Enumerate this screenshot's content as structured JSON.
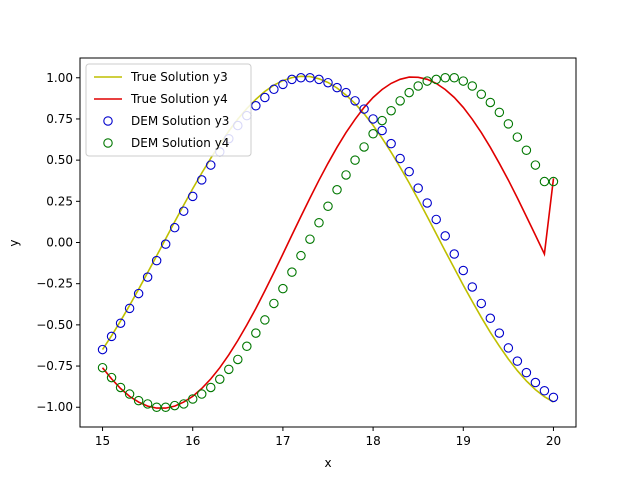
{
  "chart_data": {
    "type": "line",
    "title": "",
    "xlabel": "x",
    "ylabel": "y",
    "xlim": [
      14.75,
      20.25
    ],
    "ylim": [
      -1.12,
      1.12
    ],
    "xticks": [
      15,
      16,
      17,
      18,
      19,
      20
    ],
    "yticks": [
      -1.0,
      -0.75,
      -0.5,
      -0.25,
      0.0,
      0.25,
      0.5,
      0.75,
      1.0
    ],
    "x_tick_labels": [
      "15",
      "16",
      "17",
      "18",
      "19",
      "20"
    ],
    "y_tick_labels": [
      "−1.00",
      "−0.75",
      "−0.50",
      "−0.25",
      "0.00",
      "0.25",
      "0.50",
      "0.75",
      "1.00"
    ],
    "grid": false,
    "legend_position": "upper-left",
    "colors": {
      "true_y3": "#bfbf00",
      "true_y4": "#e00000",
      "dem_y3": "#0000cc",
      "dem_y4": "#007700"
    },
    "series": [
      {
        "name": "True Solution y3",
        "kind": "line",
        "color": "#bfbf00",
        "x": [
          15.0,
          15.1,
          15.2,
          15.3,
          15.4,
          15.5,
          15.6,
          15.7,
          15.8,
          15.9,
          16.0,
          16.1,
          16.2,
          16.3,
          16.4,
          16.5,
          16.6,
          16.7,
          16.8,
          16.9,
          17.0,
          17.1,
          17.2,
          17.3,
          17.4,
          17.5,
          17.6,
          17.7,
          17.8,
          17.9,
          18.0,
          18.1,
          18.2,
          18.3,
          18.4,
          18.5,
          18.6,
          18.7,
          18.8,
          18.9,
          19.0,
          19.1,
          19.2,
          19.3,
          19.4,
          19.5,
          19.6,
          19.7,
          19.8,
          19.9,
          20.0
        ],
        "y": [
          -0.65,
          -0.566,
          -0.476,
          -0.382,
          -0.284,
          -0.183,
          -0.08,
          0.023,
          0.126,
          0.227,
          0.326,
          0.421,
          0.512,
          0.597,
          0.676,
          0.749,
          0.813,
          0.869,
          0.917,
          0.955,
          0.983,
          1.001,
          1.009,
          1.007,
          0.994,
          0.971,
          0.938,
          0.895,
          0.843,
          0.781,
          0.711,
          0.633,
          0.548,
          0.457,
          0.361,
          0.261,
          0.158,
          0.053,
          -0.052,
          -0.156,
          -0.259,
          -0.358,
          -0.454,
          -0.545,
          -0.629,
          -0.708,
          -0.778,
          -0.84,
          -0.893,
          -0.936,
          -0.968
        ]
      },
      {
        "name": "True Solution y4",
        "kind": "line",
        "color": "#e00000",
        "x": [
          15.0,
          15.1,
          15.2,
          15.3,
          15.4,
          15.5,
          15.6,
          15.7,
          15.8,
          15.9,
          16.0,
          16.1,
          16.2,
          16.3,
          16.4,
          16.5,
          16.6,
          16.7,
          16.8,
          16.9,
          17.0,
          17.1,
          17.2,
          17.3,
          17.4,
          17.5,
          17.6,
          17.7,
          17.8,
          17.9,
          18.0,
          18.1,
          18.2,
          18.3,
          18.4,
          18.5,
          18.6,
          18.7,
          18.8,
          18.9,
          19.0,
          19.1,
          19.2,
          19.3,
          19.4,
          19.5,
          19.6,
          19.7,
          19.8,
          19.9,
          20.0
        ],
        "y": [
          -0.76,
          -0.828,
          -0.886,
          -0.934,
          -0.969,
          -0.993,
          -1.005,
          -1.005,
          -0.993,
          -0.969,
          -0.934,
          -0.886,
          -0.828,
          -0.76,
          -0.682,
          -0.595,
          -0.501,
          -0.4,
          -0.293,
          -0.183,
          -0.07,
          0.045,
          0.158,
          0.27,
          0.378,
          0.481,
          0.578,
          0.667,
          0.748,
          0.82,
          0.88,
          0.929,
          0.966,
          0.991,
          1.004,
          1.003,
          0.991,
          0.966,
          0.929,
          0.88,
          0.82,
          0.748,
          0.667,
          0.578,
          0.481,
          0.378,
          0.27,
          0.158,
          0.045,
          -0.07,
          0.39
        ]
      },
      {
        "name": "DEM Solution y3",
        "kind": "scatter",
        "color": "#0000cc",
        "x": [
          15.0,
          15.1,
          15.2,
          15.3,
          15.4,
          15.5,
          15.6,
          15.7,
          15.8,
          15.9,
          16.0,
          16.1,
          16.2,
          16.3,
          16.4,
          16.5,
          16.6,
          16.7,
          16.8,
          16.9,
          17.0,
          17.1,
          17.2,
          17.3,
          17.4,
          17.5,
          17.6,
          17.7,
          17.8,
          17.9,
          18.0,
          18.1,
          18.2,
          18.3,
          18.4,
          18.5,
          18.6,
          18.7,
          18.8,
          18.9,
          19.0,
          19.1,
          19.2,
          19.3,
          19.4,
          19.5,
          19.6,
          19.7,
          19.8,
          19.9,
          20.0
        ],
        "y": [
          -0.65,
          -0.57,
          -0.49,
          -0.4,
          -0.31,
          -0.21,
          -0.11,
          -0.01,
          0.09,
          0.19,
          0.28,
          0.38,
          0.47,
          0.55,
          0.63,
          0.71,
          0.77,
          0.83,
          0.88,
          0.93,
          0.96,
          0.99,
          1.0,
          1.0,
          0.99,
          0.97,
          0.94,
          0.91,
          0.86,
          0.81,
          0.75,
          0.68,
          0.6,
          0.51,
          0.43,
          0.33,
          0.24,
          0.14,
          0.04,
          -0.07,
          -0.17,
          -0.27,
          -0.37,
          -0.46,
          -0.55,
          -0.64,
          -0.72,
          -0.79,
          -0.85,
          -0.9,
          -0.94
        ]
      },
      {
        "name": "DEM Solution y4",
        "kind": "scatter",
        "color": "#007700",
        "x": [
          15.0,
          15.1,
          15.2,
          15.3,
          15.4,
          15.5,
          15.6,
          15.7,
          15.8,
          15.9,
          16.0,
          16.1,
          16.2,
          16.3,
          16.4,
          16.5,
          16.6,
          16.7,
          16.8,
          16.9,
          17.0,
          17.1,
          17.2,
          17.3,
          17.4,
          17.5,
          17.6,
          17.7,
          17.8,
          17.9,
          18.0,
          18.1,
          18.2,
          18.3,
          18.4,
          18.5,
          18.6,
          18.7,
          18.8,
          18.9,
          19.0,
          19.1,
          19.2,
          19.3,
          19.4,
          19.5,
          19.6,
          19.7,
          19.8,
          19.9,
          20.0
        ],
        "y": [
          -0.76,
          -0.82,
          -0.88,
          -0.92,
          -0.96,
          -0.98,
          -1.0,
          -1.0,
          -0.99,
          -0.98,
          -0.95,
          -0.92,
          -0.88,
          -0.83,
          -0.77,
          -0.71,
          -0.63,
          -0.55,
          -0.47,
          -0.37,
          -0.28,
          -0.18,
          -0.08,
          0.02,
          0.12,
          0.22,
          0.32,
          0.41,
          0.5,
          0.58,
          0.66,
          0.74,
          0.8,
          0.86,
          0.91,
          0.95,
          0.98,
          0.99,
          1.0,
          1.0,
          0.98,
          0.95,
          0.9,
          0.85,
          0.79,
          0.72,
          0.64,
          0.56,
          0.47,
          0.37,
          0.37
        ]
      }
    ]
  }
}
